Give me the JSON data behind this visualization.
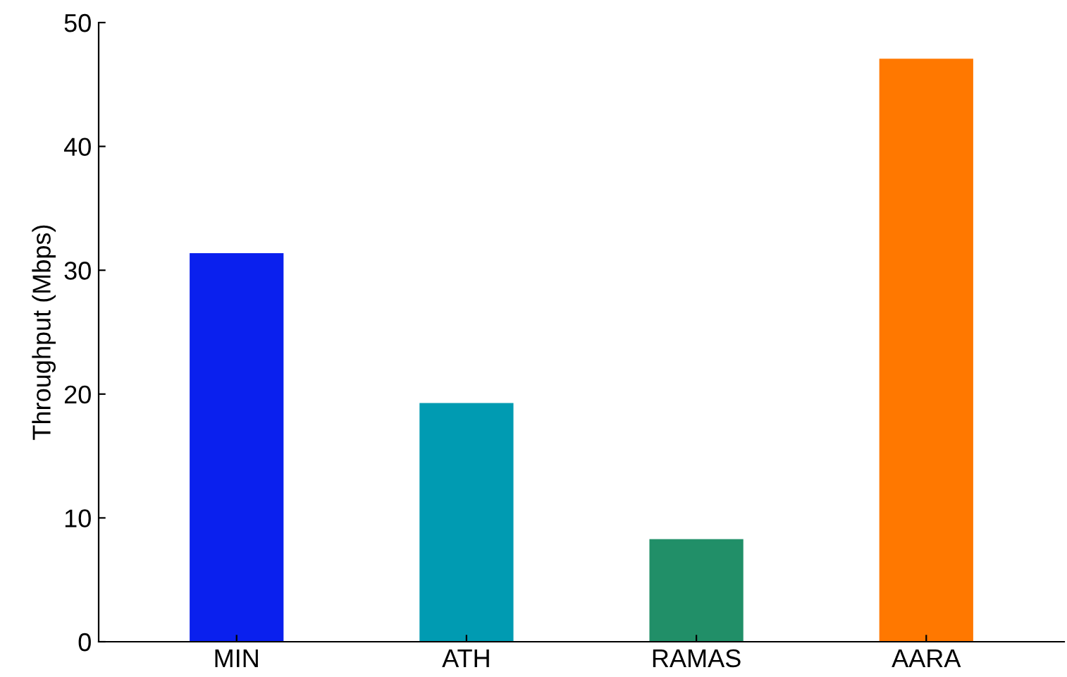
{
  "chart_data": {
    "type": "bar",
    "ylabel": "Throughput (Mbps)",
    "categories": [
      "MIN",
      "ATH",
      "RAMAS",
      "AARA"
    ],
    "values": [
      31.3,
      19.2,
      8.2,
      47.0
    ],
    "colors": [
      "#0a20ee",
      "#009bb2",
      "#218f68",
      "#ff7800"
    ],
    "ylim": [
      0,
      50
    ],
    "yticks": [
      0,
      10,
      20,
      30,
      40,
      50
    ],
    "grid": false
  }
}
